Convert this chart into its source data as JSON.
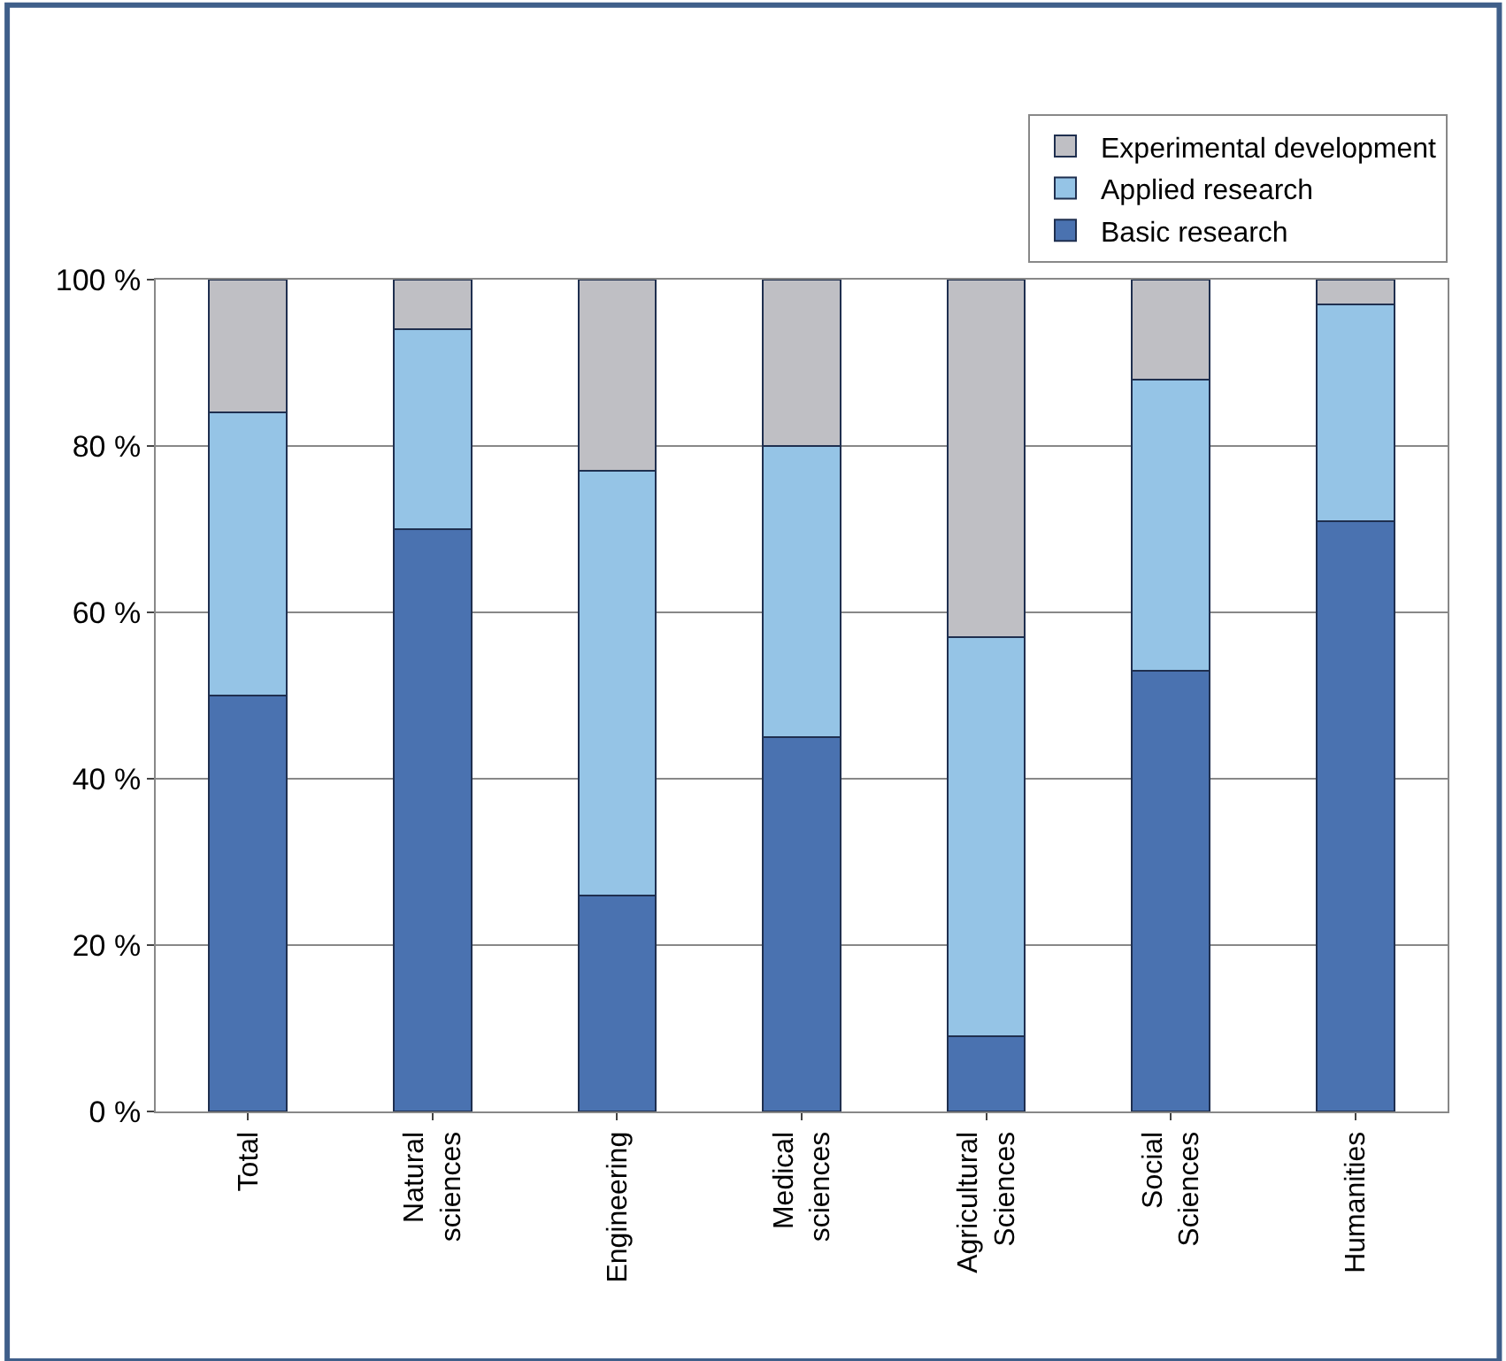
{
  "chart_data": {
    "type": "bar",
    "stacked": true,
    "categories": [
      "Total",
      "Natural\nsciences",
      "Engineering",
      "Medical\nsciences",
      "Agricultural\nSciences",
      "Social\nSciences",
      "Humanities"
    ],
    "series": [
      {
        "name": "Basic research",
        "color": "#4a72b0",
        "values": [
          50,
          70,
          26,
          45,
          9,
          53,
          71
        ]
      },
      {
        "name": "Applied research",
        "color": "#95c4e6",
        "values": [
          34,
          24,
          51,
          35,
          48,
          35,
          26
        ]
      },
      {
        "name": "Experimental development",
        "color": "#bfbfc4",
        "values": [
          16,
          6,
          23,
          20,
          43,
          12,
          3
        ]
      }
    ],
    "ylim": [
      0,
      100
    ],
    "yticks": [
      {
        "value": 0,
        "label": "0 %"
      },
      {
        "value": 20,
        "label": "20 %"
      },
      {
        "value": 40,
        "label": "40 %"
      },
      {
        "value": 60,
        "label": "60 %"
      },
      {
        "value": 80,
        "label": "80 %"
      },
      {
        "value": 100,
        "label": "100 %"
      }
    ],
    "grid": "y",
    "legend": "top right"
  }
}
